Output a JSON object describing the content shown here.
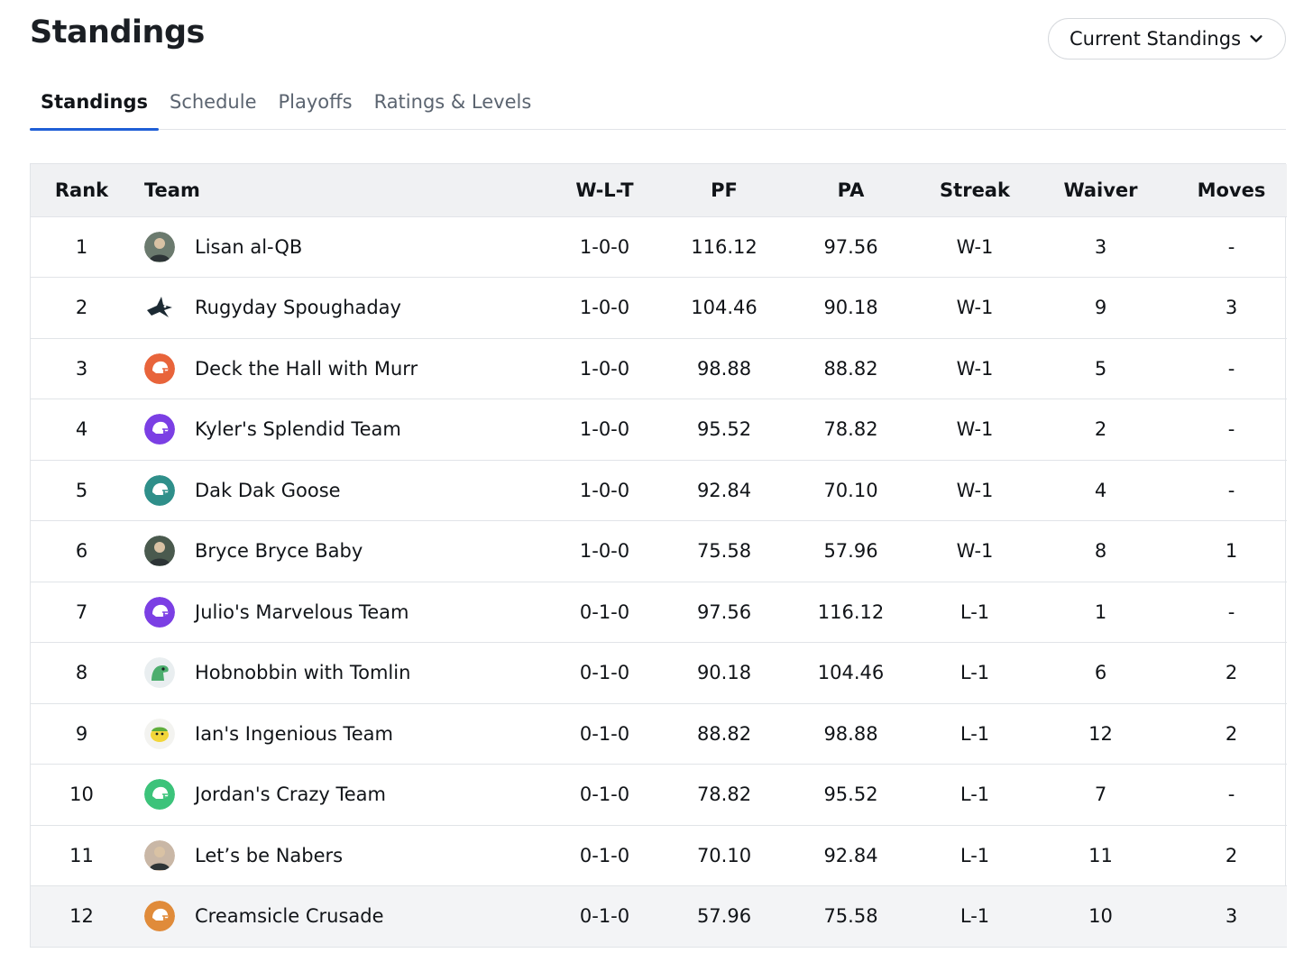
{
  "header": {
    "title": "Standings"
  },
  "view_select": {
    "selected": "Current Standings"
  },
  "tabs": [
    {
      "label": "Standings",
      "active": true
    },
    {
      "label": "Schedule",
      "active": false
    },
    {
      "label": "Playoffs",
      "active": false
    },
    {
      "label": "Ratings & Levels",
      "active": false
    }
  ],
  "table": {
    "columns": [
      "Rank",
      "Team",
      "W-L-T",
      "PF",
      "PA",
      "Streak",
      "Waiver",
      "Moves"
    ],
    "rows": [
      {
        "rank": "1",
        "team": "Lisan al-QB",
        "logo": "photo-avatar-icon",
        "wlt": "1-0-0",
        "pf": "116.12",
        "pa": "97.56",
        "streak": "W-1",
        "waiver": "3",
        "moves": "-"
      },
      {
        "rank": "2",
        "team": "Rugyday Spoughaday",
        "logo": "shark-icon",
        "wlt": "1-0-0",
        "pf": "104.46",
        "pa": "90.18",
        "streak": "W-1",
        "waiver": "9",
        "moves": "3"
      },
      {
        "rank": "3",
        "team": "Deck the Hall with Murr",
        "logo": "helmet-icon",
        "wlt": "1-0-0",
        "pf": "98.88",
        "pa": "88.82",
        "streak": "W-1",
        "waiver": "5",
        "moves": "-"
      },
      {
        "rank": "4",
        "team": "Kyler's Splendid Team",
        "logo": "helmet-icon",
        "wlt": "1-0-0",
        "pf": "95.52",
        "pa": "78.82",
        "streak": "W-1",
        "waiver": "2",
        "moves": "-"
      },
      {
        "rank": "5",
        "team": "Dak Dak Goose",
        "logo": "helmet-icon",
        "wlt": "1-0-0",
        "pf": "92.84",
        "pa": "70.10",
        "streak": "W-1",
        "waiver": "4",
        "moves": "-"
      },
      {
        "rank": "6",
        "team": "Bryce Bryce Baby",
        "logo": "photo-avatar-icon",
        "wlt": "1-0-0",
        "pf": "75.58",
        "pa": "57.96",
        "streak": "W-1",
        "waiver": "8",
        "moves": "1"
      },
      {
        "rank": "7",
        "team": "Julio's Marvelous Team",
        "logo": "helmet-icon",
        "wlt": "0-1-0",
        "pf": "97.56",
        "pa": "116.12",
        "streak": "L-1",
        "waiver": "1",
        "moves": "-"
      },
      {
        "rank": "8",
        "team": "Hobnobbin with Tomlin",
        "logo": "dinosaur-icon",
        "wlt": "0-1-0",
        "pf": "90.18",
        "pa": "104.46",
        "streak": "L-1",
        "waiver": "6",
        "moves": "2"
      },
      {
        "rank": "9",
        "team": "Ian's Ingenious Team",
        "logo": "cartoon-face-icon",
        "wlt": "0-1-0",
        "pf": "88.82",
        "pa": "98.88",
        "streak": "L-1",
        "waiver": "12",
        "moves": "2"
      },
      {
        "rank": "10",
        "team": "Jordan's Crazy Team",
        "logo": "helmet-icon",
        "wlt": "0-1-0",
        "pf": "78.82",
        "pa": "95.52",
        "streak": "L-1",
        "waiver": "7",
        "moves": "-"
      },
      {
        "rank": "11",
        "team": "Let’s be Nabers",
        "logo": "photo-avatar-icon",
        "wlt": "0-1-0",
        "pf": "70.10",
        "pa": "92.84",
        "streak": "L-1",
        "waiver": "11",
        "moves": "2"
      },
      {
        "rank": "12",
        "team": "Creamsicle Crusade",
        "logo": "helmet-icon",
        "wlt": "0-1-0",
        "pf": "57.96",
        "pa": "75.58",
        "streak": "L-1",
        "waiver": "10",
        "moves": "3"
      }
    ]
  },
  "logo_colors": [
    "#6b7a6e",
    "#1c2a33",
    "#e8643b",
    "#7b3fe4",
    "#2f8f8a",
    "#4a5a4e",
    "#7b3fe4",
    "#e9eef0",
    "#f3f3f0",
    "#3cc37a",
    "#c9b7a6",
    "#e08b3a"
  ],
  "accent_color": "#1f5fd6"
}
